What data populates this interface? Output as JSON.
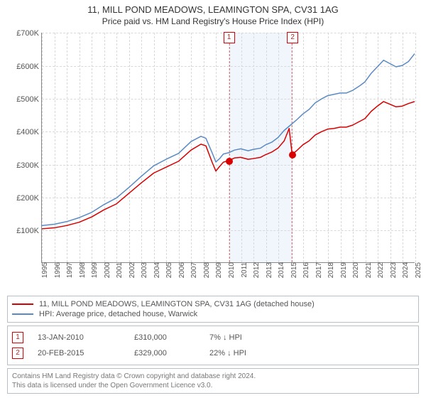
{
  "title_line1": "11, MILL POND MEADOWS, LEAMINGTON SPA, CV31 1AG",
  "title_line2": "Price paid vs. HM Land Registry's House Price Index (HPI)",
  "title_font_size_pt": 13,
  "subtitle_font_size_pt": 12,
  "chart": {
    "type": "line",
    "x_axis": {
      "min_year": 1995,
      "max_year": 2025,
      "tick_years": [
        1995,
        1996,
        1997,
        1998,
        1999,
        2000,
        2001,
        2002,
        2003,
        2004,
        2005,
        2006,
        2007,
        2008,
        2009,
        2010,
        2011,
        2012,
        2013,
        2014,
        2015,
        2016,
        2017,
        2018,
        2019,
        2020,
        2021,
        2022,
        2023,
        2024,
        2025
      ],
      "tick_label_prefix": "",
      "label_fontsize": 10,
      "label_color": "#555555",
      "gridline_color": "#d9d9d9",
      "rotate_labels_deg": -90
    },
    "y_axis": {
      "min": 0,
      "max": 700000,
      "tick_step": 100000,
      "tick_labels": [
        "£0",
        "£100K",
        "£200K",
        "£300K",
        "£400K",
        "£500K",
        "£600K",
        "£700K"
      ],
      "label_fontsize": 11,
      "label_color": "#555555",
      "gridline_color": "#d9d9d9"
    },
    "background_color": "#ffffff",
    "axis_color": "#888888",
    "shaded_region": {
      "start_year": 2010.03,
      "end_year": 2015.14,
      "fill_color": "#eef5fc",
      "border_color": "#d06a6a",
      "border_dash": "3,3"
    },
    "series": [
      {
        "name": "property",
        "label": "11, MILL POND MEADOWS, LEAMINGTON SPA, CV31 1AG (detached house)",
        "color": "#d80000",
        "line_width": 1.5,
        "points": [
          [
            1995,
            102000
          ],
          [
            1996,
            105000
          ],
          [
            1997,
            112000
          ],
          [
            1998,
            122000
          ],
          [
            1999,
            138000
          ],
          [
            2000,
            160000
          ],
          [
            2001,
            178000
          ],
          [
            2002,
            210000
          ],
          [
            2003,
            242000
          ],
          [
            2004,
            272000
          ],
          [
            2005,
            290000
          ],
          [
            2006,
            308000
          ],
          [
            2007,
            342000
          ],
          [
            2007.8,
            360000
          ],
          [
            2008.2,
            355000
          ],
          [
            2008.7,
            305000
          ],
          [
            2009,
            278000
          ],
          [
            2009.3,
            292000
          ],
          [
            2009.6,
            305000
          ],
          [
            2010.03,
            310000
          ],
          [
            2010.5,
            318000
          ],
          [
            2011,
            320000
          ],
          [
            2011.6,
            314000
          ],
          [
            2012,
            316000
          ],
          [
            2012.6,
            320000
          ],
          [
            2013,
            328000
          ],
          [
            2013.5,
            336000
          ],
          [
            2014,
            348000
          ],
          [
            2014.5,
            370000
          ],
          [
            2014.9,
            408000
          ],
          [
            2015.14,
            329000
          ],
          [
            2015.5,
            340000
          ],
          [
            2016,
            358000
          ],
          [
            2016.5,
            370000
          ],
          [
            2017,
            388000
          ],
          [
            2017.5,
            398000
          ],
          [
            2018,
            406000
          ],
          [
            2018.5,
            408000
          ],
          [
            2019,
            412000
          ],
          [
            2019.5,
            412000
          ],
          [
            2020,
            418000
          ],
          [
            2020.5,
            428000
          ],
          [
            2021,
            438000
          ],
          [
            2021.5,
            460000
          ],
          [
            2022,
            476000
          ],
          [
            2022.5,
            490000
          ],
          [
            2023,
            482000
          ],
          [
            2023.5,
            474000
          ],
          [
            2024,
            476000
          ],
          [
            2024.5,
            484000
          ],
          [
            2025,
            490000
          ]
        ]
      },
      {
        "name": "hpi",
        "label": "HPI: Average price, detached house, Warwick",
        "color": "#5a8ac6",
        "line_width": 1.5,
        "points": [
          [
            1995,
            112000
          ],
          [
            1996,
            116000
          ],
          [
            1997,
            124000
          ],
          [
            1998,
            136000
          ],
          [
            1999,
            152000
          ],
          [
            2000,
            176000
          ],
          [
            2001,
            196000
          ],
          [
            2002,
            228000
          ],
          [
            2003,
            262000
          ],
          [
            2004,
            294000
          ],
          [
            2005,
            314000
          ],
          [
            2006,
            332000
          ],
          [
            2007,
            368000
          ],
          [
            2007.8,
            384000
          ],
          [
            2008.2,
            378000
          ],
          [
            2008.7,
            334000
          ],
          [
            2009,
            306000
          ],
          [
            2009.3,
            316000
          ],
          [
            2009.6,
            330000
          ],
          [
            2010.03,
            334000
          ],
          [
            2010.5,
            342000
          ],
          [
            2011,
            346000
          ],
          [
            2011.6,
            340000
          ],
          [
            2012,
            344000
          ],
          [
            2012.6,
            348000
          ],
          [
            2013,
            358000
          ],
          [
            2013.5,
            366000
          ],
          [
            2014,
            380000
          ],
          [
            2014.5,
            402000
          ],
          [
            2015,
            418000
          ],
          [
            2015.5,
            434000
          ],
          [
            2016,
            452000
          ],
          [
            2016.5,
            466000
          ],
          [
            2017,
            486000
          ],
          [
            2017.5,
            498000
          ],
          [
            2018,
            508000
          ],
          [
            2018.5,
            512000
          ],
          [
            2019,
            516000
          ],
          [
            2019.5,
            516000
          ],
          [
            2020,
            524000
          ],
          [
            2020.5,
            536000
          ],
          [
            2021,
            550000
          ],
          [
            2021.5,
            576000
          ],
          [
            2022,
            596000
          ],
          [
            2022.5,
            616000
          ],
          [
            2023,
            606000
          ],
          [
            2023.5,
            596000
          ],
          [
            2024,
            600000
          ],
          [
            2024.5,
            612000
          ],
          [
            2025,
            636000
          ]
        ]
      }
    ],
    "markers": [
      {
        "id": "1",
        "year": 2010.03,
        "dot_value": 310000,
        "dot_color": "#d80000",
        "box_border_color": "#d80000"
      },
      {
        "id": "2",
        "year": 2015.14,
        "dot_value": 329000,
        "dot_color": "#d80000",
        "box_border_color": "#d80000"
      }
    ]
  },
  "legend": {
    "border_color": "#b7c0c9",
    "font_size": 11,
    "text_color": "#555555"
  },
  "transactions": {
    "border_color": "#b7c0c9",
    "font_size": 11,
    "rows": [
      {
        "id": "1",
        "date": "13-JAN-2010",
        "price": "£310,000",
        "diff": "7% ↓ HPI"
      },
      {
        "id": "2",
        "date": "20-FEB-2015",
        "price": "£329,000",
        "diff": "22% ↓ HPI"
      }
    ]
  },
  "footer": {
    "line1": "Contains HM Land Registry data © Crown copyright and database right 2024.",
    "line2": "This data is licensed under the Open Government Licence v3.0.",
    "border_color": "#b7c0c9",
    "font_size": 10,
    "text_color": "#777777"
  }
}
